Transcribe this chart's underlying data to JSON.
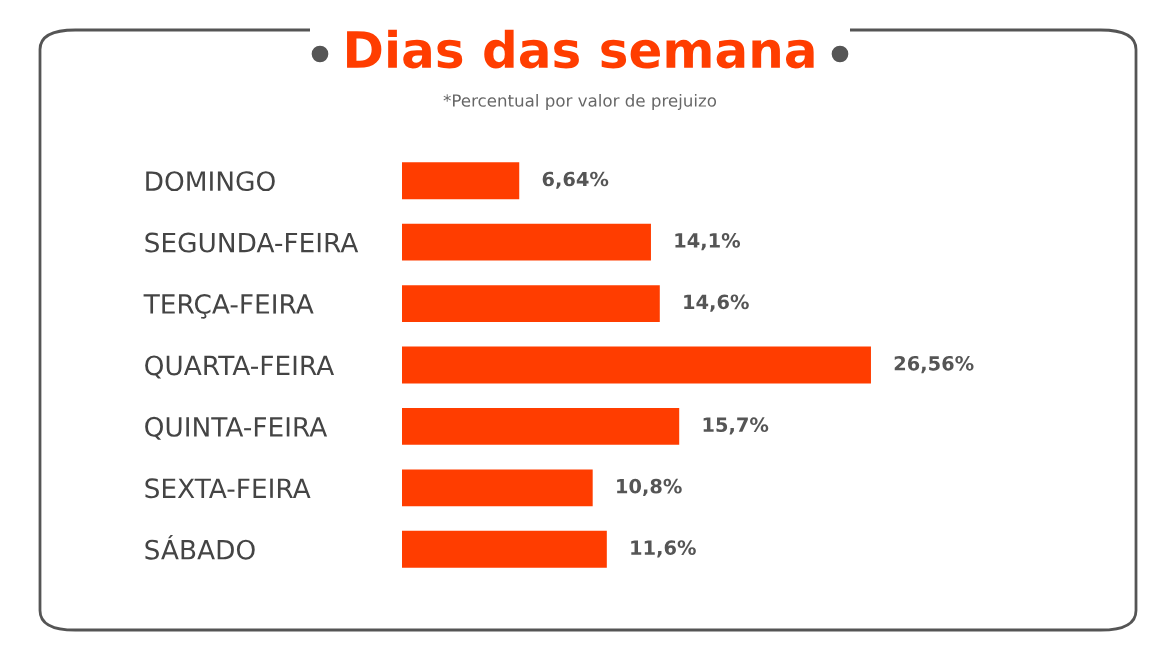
{
  "chart_data": {
    "type": "bar",
    "orientation": "horizontal",
    "title": "Dias das semana",
    "subtitle": "*Percentual por valor de prejuizo",
    "categories": [
      "DOMINGO",
      "SEGUNDA-FEIRA",
      "TERÇA-FEIRA",
      "QUARTA-FEIRA",
      "QUINTA-FEIRA",
      "SEXTA-FEIRA",
      "SÁBADO"
    ],
    "values": [
      6.64,
      14.1,
      14.6,
      26.56,
      15.7,
      10.8,
      11.6
    ],
    "value_labels": [
      "6,64%",
      "14,1%",
      "14,6%",
      "26,56%",
      "15,7%",
      "10,8%",
      "11,6%"
    ],
    "color": "#ff3d00",
    "grid": false,
    "legend": false
  }
}
